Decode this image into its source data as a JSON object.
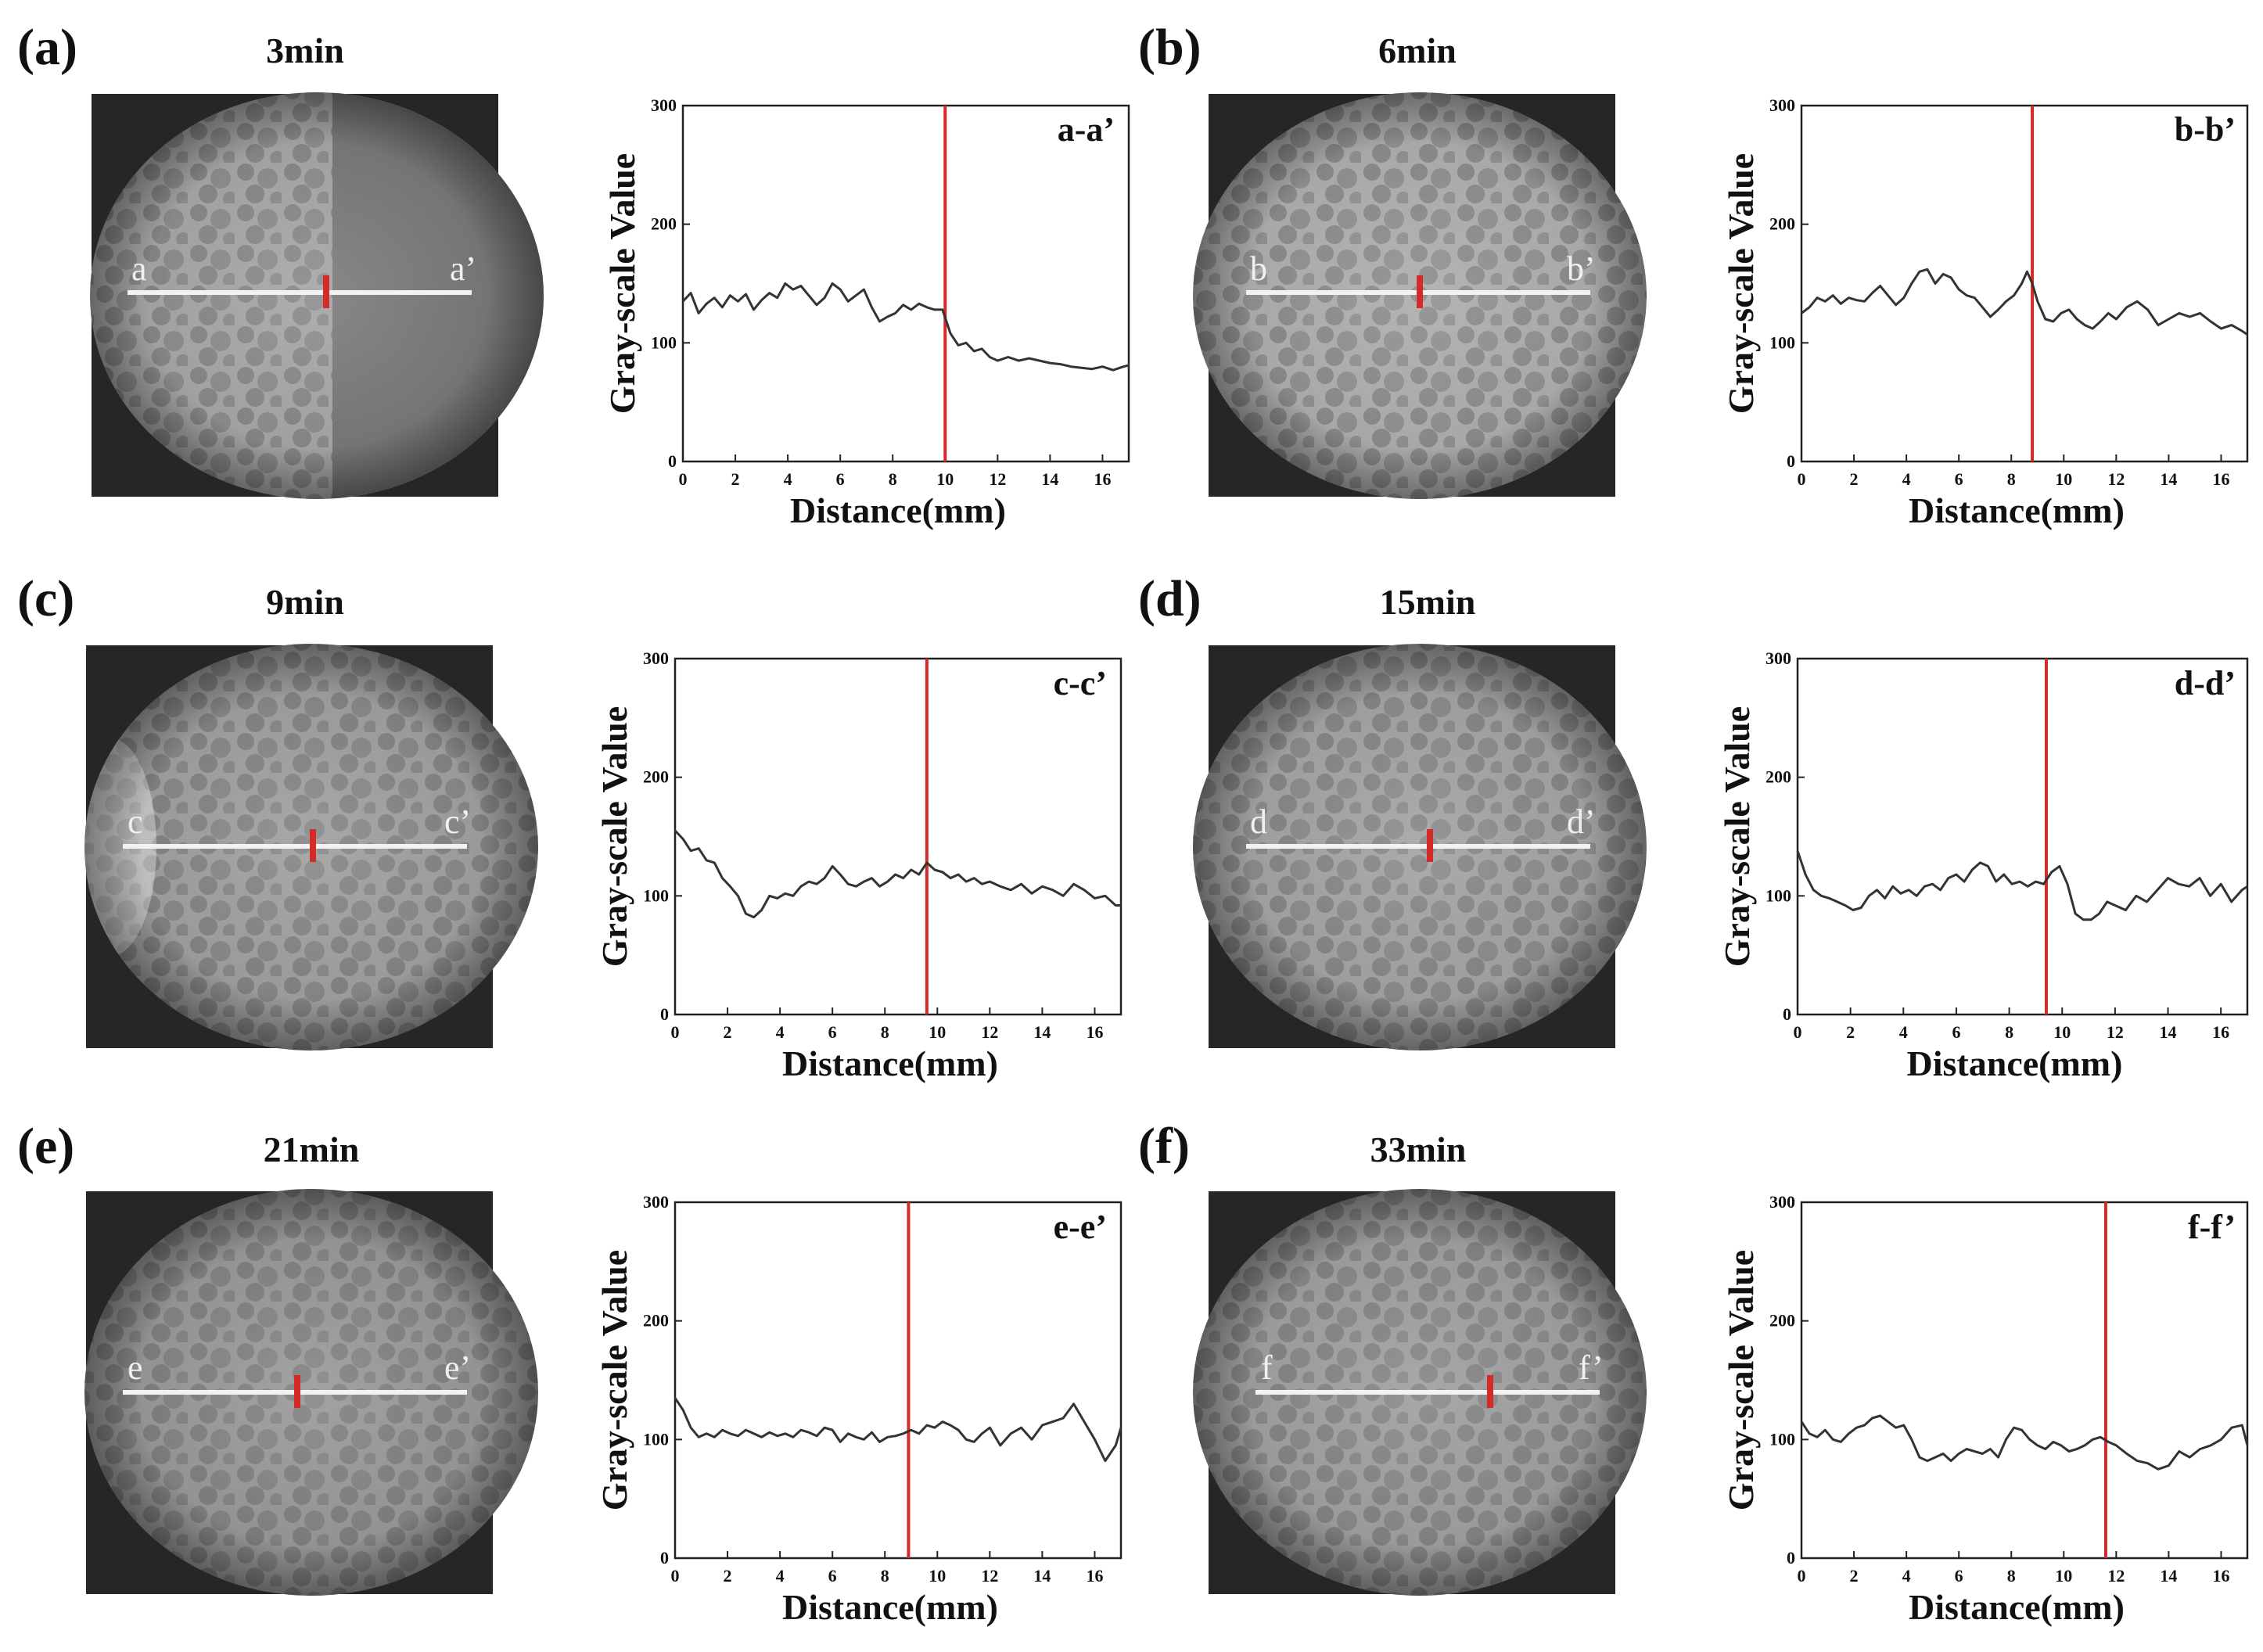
{
  "figure": {
    "axis_labels": {
      "x": "Distance(mm)",
      "y": "Gray-scale Value"
    },
    "colors": {
      "line": "#333333",
      "marker": "#d42a2a",
      "frame": "#222222",
      "section_line": "#f2f2f2"
    }
  },
  "panels": [
    {
      "id": "a",
      "label": "(a)",
      "time": "3min",
      "start": "a",
      "end": "a’",
      "chart_label": "a-a’"
    },
    {
      "id": "b",
      "label": "(b)",
      "time": "6min",
      "start": "b",
      "end": "b’",
      "chart_label": "b-b’"
    },
    {
      "id": "c",
      "label": "(c)",
      "time": "9min",
      "start": "c",
      "end": "c’",
      "chart_label": "c-c’"
    },
    {
      "id": "d",
      "label": "(d)",
      "time": "15min",
      "start": "d",
      "end": "d’",
      "chart_label": "d-d’"
    },
    {
      "id": "e",
      "label": "(e)",
      "time": "21min",
      "start": "e",
      "end": "e’",
      "chart_label": "e-e’"
    },
    {
      "id": "f",
      "label": "(f)",
      "time": "33min",
      "start": "f",
      "end": "f’",
      "chart_label": "f-f’"
    }
  ],
  "chart_data": [
    {
      "type": "line",
      "panel": "a",
      "title": "a-a’",
      "xlabel": "Distance(mm)",
      "ylabel": "Gray-scale Value",
      "xlim": [
        0,
        17
      ],
      "ylim": [
        0,
        300
      ],
      "xticks": [
        0,
        2,
        4,
        6,
        8,
        10,
        12,
        14,
        16
      ],
      "yticks": [
        0,
        100,
        200,
        300
      ],
      "marker_x": 10.0,
      "series": [
        {
          "name": "a-a’",
          "x": [
            0,
            0.3,
            0.6,
            0.9,
            1.2,
            1.5,
            1.8,
            2.1,
            2.4,
            2.7,
            3.0,
            3.3,
            3.6,
            3.9,
            4.2,
            4.5,
            4.8,
            5.1,
            5.4,
            5.7,
            6.0,
            6.3,
            6.6,
            6.9,
            7.2,
            7.5,
            7.8,
            8.1,
            8.4,
            8.7,
            9.0,
            9.3,
            9.6,
            9.9,
            10.2,
            10.5,
            10.8,
            11.1,
            11.4,
            11.7,
            12.0,
            12.4,
            12.8,
            13.2,
            13.6,
            14.0,
            14.4,
            14.8,
            15.2,
            15.6,
            16.0,
            16.4,
            16.8,
            17.0
          ],
          "y": [
            135,
            142,
            125,
            133,
            138,
            130,
            140,
            135,
            141,
            128,
            136,
            142,
            138,
            150,
            145,
            148,
            140,
            132,
            138,
            150,
            145,
            135,
            140,
            145,
            130,
            118,
            122,
            125,
            132,
            128,
            133,
            130,
            128,
            128,
            108,
            98,
            100,
            93,
            95,
            88,
            85,
            88,
            85,
            87,
            85,
            83,
            82,
            80,
            79,
            78,
            80,
            77,
            80,
            81
          ]
        }
      ]
    },
    {
      "type": "line",
      "panel": "b",
      "title": "b-b’",
      "xlabel": "Distance(mm)",
      "ylabel": "Gray-scale Value",
      "xlim": [
        0,
        17
      ],
      "ylim": [
        0,
        300
      ],
      "xticks": [
        0,
        2,
        4,
        6,
        8,
        10,
        12,
        14,
        16
      ],
      "yticks": [
        0,
        100,
        200,
        300
      ],
      "marker_x": 8.8,
      "series": [
        {
          "name": "b-b’",
          "x": [
            0,
            0.3,
            0.6,
            0.9,
            1.2,
            1.5,
            1.8,
            2.1,
            2.4,
            2.7,
            3.0,
            3.3,
            3.6,
            3.9,
            4.2,
            4.5,
            4.8,
            5.1,
            5.4,
            5.7,
            6.0,
            6.3,
            6.6,
            6.9,
            7.2,
            7.5,
            7.8,
            8.1,
            8.4,
            8.6,
            8.8,
            9.0,
            9.3,
            9.6,
            9.9,
            10.2,
            10.5,
            10.8,
            11.1,
            11.4,
            11.7,
            12.0,
            12.4,
            12.8,
            13.2,
            13.6,
            14.0,
            14.4,
            14.8,
            15.2,
            15.6,
            16.0,
            16.4,
            16.8,
            17.0
          ],
          "y": [
            125,
            130,
            138,
            135,
            140,
            133,
            138,
            136,
            135,
            142,
            148,
            140,
            132,
            138,
            150,
            160,
            162,
            150,
            158,
            155,
            145,
            140,
            138,
            130,
            122,
            128,
            135,
            140,
            150,
            160,
            150,
            135,
            120,
            118,
            125,
            128,
            120,
            115,
            112,
            118,
            125,
            120,
            130,
            135,
            128,
            115,
            120,
            125,
            122,
            125,
            118,
            112,
            115,
            110,
            107
          ]
        }
      ]
    },
    {
      "type": "line",
      "panel": "c",
      "title": "c-c’",
      "xlabel": "Distance(mm)",
      "ylabel": "Gray-scale Value",
      "xlim": [
        0,
        17
      ],
      "ylim": [
        0,
        300
      ],
      "xticks": [
        0,
        2,
        4,
        6,
        8,
        10,
        12,
        14,
        16
      ],
      "yticks": [
        0,
        100,
        200,
        300
      ],
      "marker_x": 9.6,
      "series": [
        {
          "name": "c-c’",
          "x": [
            0,
            0.3,
            0.6,
            0.9,
            1.2,
            1.5,
            1.8,
            2.1,
            2.4,
            2.7,
            3.0,
            3.3,
            3.6,
            3.9,
            4.2,
            4.5,
            4.8,
            5.1,
            5.4,
            5.7,
            6.0,
            6.3,
            6.6,
            6.9,
            7.2,
            7.5,
            7.8,
            8.1,
            8.4,
            8.7,
            9.0,
            9.3,
            9.6,
            9.9,
            10.2,
            10.5,
            10.8,
            11.1,
            11.4,
            11.7,
            12.0,
            12.4,
            12.8,
            13.2,
            13.6,
            14.0,
            14.4,
            14.8,
            15.2,
            15.6,
            16.0,
            16.4,
            16.8,
            17.0
          ],
          "y": [
            155,
            148,
            138,
            140,
            130,
            128,
            115,
            108,
            100,
            85,
            82,
            88,
            100,
            98,
            102,
            100,
            108,
            112,
            110,
            115,
            125,
            118,
            110,
            108,
            112,
            115,
            108,
            112,
            118,
            115,
            122,
            118,
            128,
            122,
            120,
            115,
            118,
            112,
            115,
            110,
            112,
            108,
            105,
            110,
            102,
            108,
            105,
            100,
            110,
            105,
            98,
            100,
            92,
            92
          ]
        }
      ]
    },
    {
      "type": "line",
      "panel": "d",
      "title": "d-d’",
      "xlabel": "Distance(mm)",
      "ylabel": "Gray-scale Value",
      "xlim": [
        0,
        17
      ],
      "ylim": [
        0,
        300
      ],
      "xticks": [
        0,
        2,
        4,
        6,
        8,
        10,
        12,
        14,
        16
      ],
      "yticks": [
        0,
        100,
        200,
        300
      ],
      "marker_x": 9.4,
      "series": [
        {
          "name": "d-d’",
          "x": [
            0,
            0.3,
            0.6,
            0.9,
            1.2,
            1.5,
            1.8,
            2.1,
            2.4,
            2.7,
            3.0,
            3.3,
            3.6,
            3.9,
            4.2,
            4.5,
            4.8,
            5.1,
            5.4,
            5.7,
            6.0,
            6.3,
            6.6,
            6.9,
            7.2,
            7.5,
            7.8,
            8.1,
            8.4,
            8.7,
            9.0,
            9.3,
            9.6,
            9.9,
            10.2,
            10.5,
            10.8,
            11.1,
            11.4,
            11.7,
            12.0,
            12.4,
            12.8,
            13.2,
            13.6,
            14.0,
            14.4,
            14.8,
            15.2,
            15.6,
            16.0,
            16.4,
            16.8,
            17.0
          ],
          "y": [
            138,
            118,
            105,
            100,
            98,
            95,
            92,
            88,
            90,
            100,
            105,
            98,
            108,
            102,
            105,
            100,
            108,
            110,
            105,
            115,
            118,
            112,
            122,
            128,
            125,
            112,
            118,
            110,
            112,
            108,
            112,
            110,
            120,
            125,
            110,
            85,
            80,
            80,
            85,
            95,
            92,
            88,
            100,
            95,
            105,
            115,
            110,
            108,
            115,
            100,
            110,
            95,
            105,
            108
          ]
        }
      ]
    },
    {
      "type": "line",
      "panel": "e",
      "title": "e-e’",
      "xlabel": "Distance(mm)",
      "ylabel": "Gray-scale Value",
      "xlim": [
        0,
        17
      ],
      "ylim": [
        0,
        300
      ],
      "xticks": [
        0,
        2,
        4,
        6,
        8,
        10,
        12,
        14,
        16
      ],
      "yticks": [
        0,
        100,
        200,
        300
      ],
      "marker_x": 8.9,
      "series": [
        {
          "name": "e-e’",
          "x": [
            0,
            0.3,
            0.6,
            0.9,
            1.2,
            1.5,
            1.8,
            2.1,
            2.4,
            2.7,
            3.0,
            3.3,
            3.6,
            3.9,
            4.2,
            4.5,
            4.8,
            5.1,
            5.4,
            5.7,
            6.0,
            6.3,
            6.6,
            6.9,
            7.2,
            7.5,
            7.8,
            8.1,
            8.4,
            8.7,
            9.0,
            9.3,
            9.6,
            9.9,
            10.2,
            10.5,
            10.8,
            11.1,
            11.4,
            11.7,
            12.0,
            12.4,
            12.8,
            13.2,
            13.6,
            14.0,
            14.4,
            14.8,
            15.2,
            15.6,
            16.0,
            16.4,
            16.8,
            17.0
          ],
          "y": [
            135,
            125,
            110,
            102,
            105,
            102,
            108,
            105,
            103,
            108,
            105,
            102,
            106,
            103,
            105,
            102,
            108,
            106,
            103,
            110,
            108,
            98,
            105,
            102,
            100,
            106,
            98,
            102,
            103,
            105,
            108,
            105,
            112,
            110,
            115,
            112,
            108,
            100,
            98,
            105,
            110,
            95,
            105,
            110,
            100,
            112,
            115,
            118,
            130,
            115,
            100,
            82,
            95,
            110
          ]
        }
      ]
    },
    {
      "type": "line",
      "panel": "f",
      "title": "f-f’",
      "xlabel": "Distance(mm)",
      "ylabel": "Gray-scale Value",
      "xlim": [
        0,
        17
      ],
      "ylim": [
        0,
        300
      ],
      "xticks": [
        0,
        2,
        4,
        6,
        8,
        10,
        12,
        14,
        16
      ],
      "yticks": [
        0,
        100,
        200,
        300
      ],
      "marker_x": 11.6,
      "series": [
        {
          "name": "f-f’",
          "x": [
            0,
            0.3,
            0.6,
            0.9,
            1.2,
            1.5,
            1.8,
            2.1,
            2.4,
            2.7,
            3.0,
            3.3,
            3.6,
            3.9,
            4.2,
            4.5,
            4.8,
            5.1,
            5.4,
            5.7,
            6.0,
            6.3,
            6.6,
            6.9,
            7.2,
            7.5,
            7.8,
            8.1,
            8.4,
            8.7,
            9.0,
            9.3,
            9.6,
            9.9,
            10.2,
            10.5,
            10.8,
            11.1,
            11.4,
            11.7,
            12.0,
            12.4,
            12.8,
            13.2,
            13.6,
            14.0,
            14.4,
            14.8,
            15.2,
            15.6,
            16.0,
            16.4,
            16.8,
            17.0
          ],
          "y": [
            115,
            105,
            102,
            108,
            100,
            98,
            105,
            110,
            112,
            118,
            120,
            115,
            110,
            112,
            100,
            85,
            82,
            85,
            88,
            82,
            88,
            92,
            90,
            88,
            92,
            85,
            100,
            110,
            108,
            100,
            95,
            92,
            98,
            95,
            90,
            92,
            95,
            100,
            102,
            98,
            95,
            88,
            82,
            80,
            75,
            78,
            90,
            85,
            92,
            95,
            100,
            110,
            112,
            95
          ]
        }
      ]
    }
  ]
}
